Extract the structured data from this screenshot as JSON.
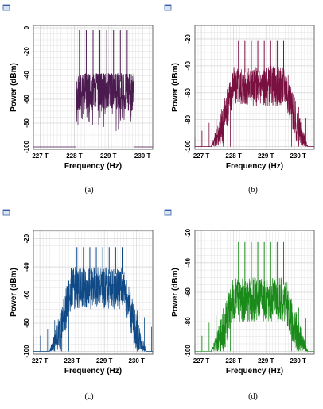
{
  "xlabel": "Frequency (Hz)",
  "ylabel": "Power (dBm)",
  "x_tick_labels": [
    "227 T",
    "228 T",
    "229 T",
    "230 T"
  ],
  "panels": [
    {
      "id": "a",
      "caption": "(a)",
      "color": "#4b1a4f",
      "y_ticks": [
        0,
        -20,
        -40,
        -60,
        -80,
        -100
      ]
    },
    {
      "id": "b",
      "caption": "(b)",
      "color": "#7a1040",
      "y_ticks": [
        -20,
        -40,
        -60,
        -80,
        -100
      ]
    },
    {
      "id": "c",
      "caption": "(c)",
      "color": "#0f4a87",
      "y_ticks": [
        -20,
        -40,
        -60,
        -80,
        -100
      ]
    },
    {
      "id": "d",
      "caption": "(d)",
      "color": "#1a8a1a",
      "y_ticks": [
        -20,
        -40,
        -60,
        -80,
        -100
      ]
    }
  ],
  "chart_data": [
    {
      "type": "line",
      "panel": "a",
      "xlabel": "Frequency (Hz)",
      "ylabel": "Power (dBm)",
      "xlim": [
        226.8,
        230.3
      ],
      "ylim": [
        -102,
        2
      ],
      "x_ticks": [
        227,
        228,
        229,
        230
      ],
      "y_ticks": [
        0,
        -20,
        -40,
        -60,
        -80,
        -100
      ],
      "grid": true,
      "noise_floor": -100,
      "band": [
        228.05,
        229.75
      ],
      "carrier_peaks_x": [
        228.15,
        228.35,
        228.55,
        228.75,
        228.95,
        229.15,
        229.35,
        229.55
      ],
      "carrier_peak_dbm": -2,
      "band_top_dbm": -40,
      "band_bottom_dbm": -70
    },
    {
      "type": "line",
      "panel": "b",
      "xlabel": "Frequency (Hz)",
      "ylabel": "Power (dBm)",
      "xlim": [
        226.8,
        230.5
      ],
      "ylim": [
        -102,
        -10
      ],
      "x_ticks": [
        227,
        228,
        229,
        230
      ],
      "y_ticks": [
        -20,
        -40,
        -60,
        -80,
        -100
      ],
      "grid": true,
      "noise_floor": -100,
      "band": [
        227.3,
        230.3
      ],
      "carrier_peaks_x": [
        228.15,
        228.35,
        228.55,
        228.75,
        228.95,
        229.15,
        229.35,
        229.55
      ],
      "carrier_peak_dbm": -21,
      "band_top_dbm": -40,
      "band_bottom_dbm": -70
    },
    {
      "type": "line",
      "panel": "c",
      "xlabel": "Frequency (Hz)",
      "ylabel": "Power (dBm)",
      "xlim": [
        226.8,
        230.5
      ],
      "ylim": [
        -102,
        -14
      ],
      "x_ticks": [
        227,
        228,
        229,
        230
      ],
      "y_ticks": [
        -20,
        -40,
        -60,
        -80,
        -100
      ],
      "grid": true,
      "noise_floor": -100,
      "band": [
        227.3,
        230.3
      ],
      "carrier_peaks_x": [
        228.15,
        228.35,
        228.55,
        228.75,
        228.95,
        229.15,
        229.35,
        229.55
      ],
      "carrier_peak_dbm": -26,
      "band_top_dbm": -40,
      "band_bottom_dbm": -70
    },
    {
      "type": "line",
      "panel": "d",
      "xlabel": "Frequency (Hz)",
      "ylabel": "Power (dBm)",
      "xlim": [
        226.8,
        230.5
      ],
      "ylim": [
        -102,
        -18
      ],
      "x_ticks": [
        227,
        228,
        229,
        230
      ],
      "y_ticks": [
        -20,
        -40,
        -60,
        -80,
        -100
      ],
      "grid": true,
      "noise_floor": -100,
      "band": [
        227.3,
        230.3
      ],
      "carrier_peaks_x": [
        228.15,
        228.35,
        228.55,
        228.75,
        228.95,
        229.15,
        229.35,
        229.55
      ],
      "carrier_peak_dbm": -26,
      "band_top_dbm": -50,
      "band_bottom_dbm": -75
    }
  ]
}
